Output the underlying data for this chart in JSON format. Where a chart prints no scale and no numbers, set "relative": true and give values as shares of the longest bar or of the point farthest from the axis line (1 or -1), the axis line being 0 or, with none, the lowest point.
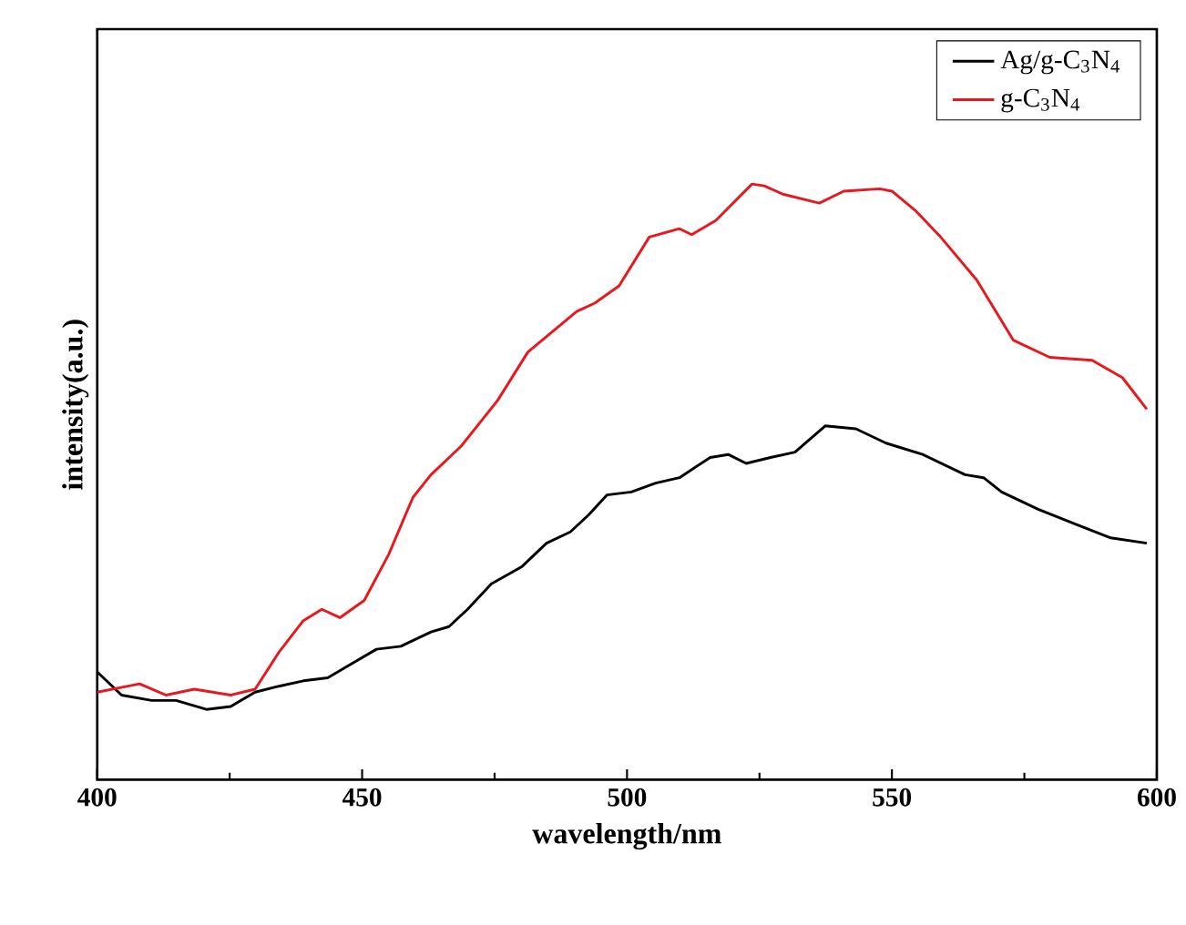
{
  "chart_data": {
    "type": "line",
    "xlabel": "wavelength/nm",
    "ylabel": "intensity(a.u.)",
    "relative": true,
    "xlim": [
      400,
      600
    ],
    "xticks": [
      400,
      450,
      500,
      550,
      600
    ],
    "legend": "top right",
    "series": [
      {
        "name": "Ag/g-C$_{3}$N$_{4}$",
        "color": "#000000",
        "x": [
          400,
          404.6,
          410.3,
          414.9,
          420.6,
          425.2,
          429.8,
          434.3,
          438.9,
          443.5,
          448.1,
          452.7,
          457.3,
          463,
          466.4,
          469.9,
          474.4,
          480.2,
          484.8,
          489.3,
          492.8,
          496.2,
          500.8,
          505.4,
          509.9,
          515.7,
          519.1,
          522.5,
          527.1,
          531.7,
          537.4,
          543.2,
          548.9,
          555.8,
          563.8,
          567.3,
          570.7,
          577.6,
          584.4,
          591.3,
          598.1
        ],
        "values": [
          0.181,
          0.142,
          0.133,
          0.133,
          0.118,
          0.123,
          0.147,
          0.157,
          0.166,
          0.171,
          0.195,
          0.219,
          0.224,
          0.248,
          0.257,
          0.286,
          0.329,
          0.358,
          0.397,
          0.416,
          0.445,
          0.478,
          0.483,
          0.498,
          0.507,
          0.541,
          0.546,
          0.531,
          0.541,
          0.55,
          0.594,
          0.589,
          0.565,
          0.546,
          0.512,
          0.507,
          0.483,
          0.454,
          0.43,
          0.406,
          0.397
        ]
      },
      {
        "name": "g-C$_{3}$N$_{4}$",
        "color": "#e8191e",
        "x": [
          400,
          408,
          413,
          418.3,
          425.2,
          429.8,
          434.3,
          438.9,
          442.4,
          445.8,
          450.4,
          455,
          459.6,
          463,
          468.7,
          475.6,
          481.3,
          485.9,
          490.5,
          493.9,
          498.5,
          504.2,
          509.9,
          512.2,
          516.8,
          523.6,
          525.9,
          529.4,
          536.3,
          540.9,
          547.7,
          550,
          554.6,
          559.2,
          566,
          572.9,
          579.8,
          587.8,
          593.5,
          598.1
        ],
        "values": [
          0.147,
          0.161,
          0.142,
          0.152,
          0.142,
          0.152,
          0.214,
          0.267,
          0.286,
          0.272,
          0.301,
          0.378,
          0.474,
          0.512,
          0.56,
          0.637,
          0.718,
          0.752,
          0.786,
          0.8,
          0.829,
          0.911,
          0.925,
          0.915,
          0.939,
          1.0,
          0.997,
          0.983,
          0.968,
          0.988,
          0.992,
          0.988,
          0.954,
          0.911,
          0.839,
          0.738,
          0.709,
          0.704,
          0.675,
          0.622
        ]
      }
    ]
  }
}
